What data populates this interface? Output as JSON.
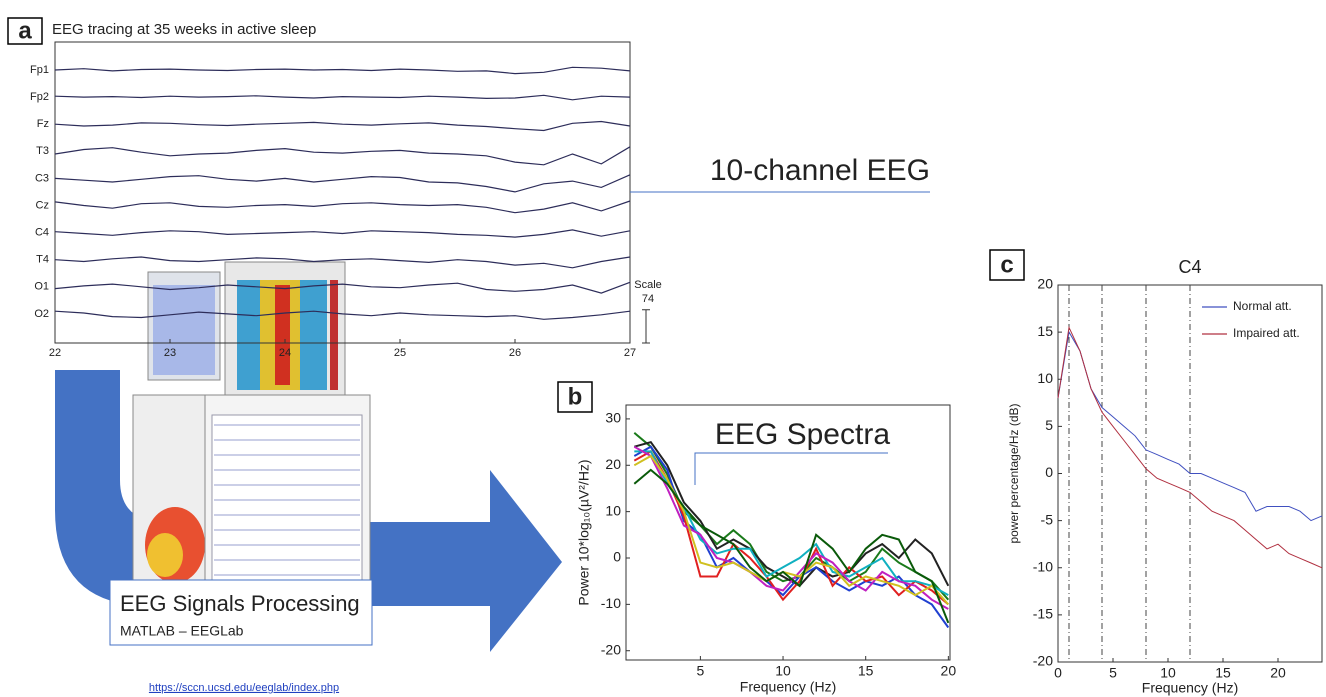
{
  "panel_labels": [
    "a",
    "b",
    "c"
  ],
  "processing": {
    "title": "EEG Signals Processing",
    "subtitle": "MATLAB – EEGLab",
    "link": "https://sccn.ucsd.edu/eeglab/index.php"
  },
  "chart_data": [
    {
      "type": "eeg",
      "title": "EEG tracing at 35 weeks in active sleep",
      "annotation": "10-channel EEG",
      "color": "#2d2d5a",
      "x": [
        22,
        22.25,
        22.5,
        22.75,
        23,
        23.25,
        23.5,
        23.75,
        24,
        24.25,
        24.5,
        24.75,
        25,
        25.25,
        25.5,
        25.75,
        26,
        26.25,
        26.5,
        26.75,
        27
      ],
      "xlim": [
        22,
        27
      ],
      "xticks": [
        22,
        23,
        24,
        25,
        26,
        27
      ],
      "scale_label": "Scale",
      "scale_value": 74,
      "series": [
        {
          "name": "Fp1",
          "values": [
            0,
            3,
            -2,
            1,
            2,
            0,
            -1,
            1,
            2,
            0,
            1,
            -1,
            2,
            0,
            -3,
            -2,
            -8,
            -5,
            6,
            4,
            -2
          ]
        },
        {
          "name": "Fp2",
          "values": [
            2,
            0,
            1,
            -1,
            2,
            0,
            1,
            3,
            0,
            -2,
            1,
            0,
            -1,
            2,
            0,
            -3,
            -2,
            4,
            -6,
            2,
            0
          ]
        },
        {
          "name": "Fz",
          "values": [
            0,
            -4,
            -2,
            3,
            2,
            -1,
            -3,
            0,
            2,
            4,
            0,
            -2,
            1,
            3,
            -2,
            -5,
            -10,
            -14,
            2,
            6,
            -4
          ]
        },
        {
          "name": "T3",
          "values": [
            -6,
            4,
            8,
            -2,
            -10,
            -6,
            -4,
            2,
            6,
            -2,
            -4,
            0,
            2,
            -4,
            -6,
            -10,
            -24,
            -30,
            -6,
            -28,
            10
          ]
        },
        {
          "name": "C3",
          "values": [
            0,
            -4,
            -8,
            -2,
            4,
            6,
            -2,
            -6,
            0,
            -8,
            -2,
            4,
            2,
            -8,
            -10,
            -18,
            -30,
            -12,
            -6,
            -20,
            8
          ]
        },
        {
          "name": "Cz",
          "values": [
            8,
            0,
            -6,
            4,
            6,
            -2,
            -4,
            0,
            2,
            -2,
            4,
            6,
            2,
            0,
            2,
            -4,
            -16,
            -8,
            6,
            -12,
            10
          ]
        },
        {
          "name": "C4",
          "values": [
            2,
            -2,
            -6,
            0,
            4,
            2,
            -4,
            -2,
            0,
            2,
            -2,
            4,
            2,
            0,
            -4,
            -6,
            -10,
            -4,
            6,
            -8,
            4
          ]
        },
        {
          "name": "T4",
          "values": [
            0,
            -4,
            2,
            6,
            -2,
            -4,
            0,
            4,
            2,
            -4,
            0,
            2,
            -2,
            -6,
            0,
            -4,
            -12,
            -8,
            -18,
            -4,
            6
          ]
        },
        {
          "name": "O1",
          "values": [
            -4,
            2,
            6,
            0,
            -6,
            -2,
            4,
            0,
            -4,
            2,
            6,
            0,
            -2,
            4,
            8,
            -6,
            -10,
            -6,
            4,
            -14,
            10
          ]
        },
        {
          "name": "O2",
          "values": [
            6,
            2,
            -6,
            -8,
            -2,
            4,
            0,
            -4,
            2,
            6,
            0,
            -4,
            2,
            -2,
            -4,
            -6,
            -4,
            -12,
            -8,
            -2,
            6
          ]
        }
      ]
    },
    {
      "type": "line",
      "annotation": "EEG Spectra",
      "xlabel": "Frequency (Hz)",
      "ylabel": "Power 10*log₁₀(µV²/Hz)",
      "x": [
        1,
        2,
        3,
        4,
        5,
        6,
        7,
        8,
        9,
        10,
        11,
        12,
        13,
        14,
        15,
        16,
        17,
        18,
        19,
        20
      ],
      "xlim": [
        0.5,
        20.1
      ],
      "ylim": [
        -22,
        33
      ],
      "xticks": [
        5,
        10,
        15,
        20
      ],
      "yticks": [
        -20,
        -10,
        0,
        10,
        20,
        30
      ],
      "series": [
        {
          "color": "#1a7a1a",
          "values": [
            27,
            24,
            18,
            10,
            7,
            3,
            6,
            3,
            -3,
            -5,
            -4,
            0,
            -2,
            -5,
            -3,
            2,
            -1,
            -3,
            -5,
            -9
          ]
        },
        {
          "color": "#222222",
          "values": [
            24,
            25,
            20,
            12,
            8,
            2,
            4,
            2,
            -2,
            -4,
            -6,
            -2,
            -4,
            -3,
            1,
            3,
            0,
            4,
            1,
            -6
          ]
        },
        {
          "color": "#2040d0",
          "values": [
            22,
            24,
            19,
            8,
            5,
            -2,
            0,
            -3,
            -5,
            -8,
            -4,
            -2,
            -5,
            -7,
            -5,
            -6,
            -4,
            -8,
            -10,
            -15
          ]
        },
        {
          "color": "#e02020",
          "values": [
            21,
            23,
            17,
            9,
            -4,
            -4,
            3,
            0,
            -4,
            -9,
            -5,
            2,
            -6,
            -2,
            -5,
            -4,
            -8,
            -5,
            -7,
            -10
          ]
        },
        {
          "color": "#10b0c0",
          "values": [
            23,
            23,
            16,
            11,
            4,
            1,
            2,
            2,
            -4,
            -2,
            0,
            3,
            -3,
            -4,
            -2,
            0,
            -5,
            -5,
            -6,
            -8
          ]
        },
        {
          "color": "#c020c0",
          "values": [
            24,
            22,
            15,
            7,
            5,
            0,
            -1,
            -3,
            -6,
            -7,
            -3,
            1,
            -1,
            -5,
            -7,
            -3,
            -5,
            -6,
            -9,
            -11
          ]
        },
        {
          "color": "#d0c020",
          "values": [
            20,
            22,
            17,
            10,
            -1,
            -2,
            -1,
            -3,
            -5,
            -3,
            -4,
            -1,
            -2,
            -6,
            -4,
            -5,
            -6,
            -8,
            -6,
            -10
          ]
        },
        {
          "color": "#0a5a0a",
          "values": [
            16,
            19,
            16,
            11,
            7,
            5,
            3,
            -2,
            -5,
            -3,
            -6,
            5,
            2,
            -3,
            2,
            5,
            4,
            -3,
            -5,
            -14
          ]
        }
      ]
    },
    {
      "type": "line",
      "title": "C4",
      "xlabel": "Frequency (Hz)",
      "ylabel": "power percentage/Hz (dB)",
      "legend": "upper right",
      "x": [
        0,
        1,
        2,
        3,
        4,
        5,
        6,
        7,
        8,
        9,
        10,
        11,
        12,
        13,
        14,
        15,
        16,
        17,
        18,
        19,
        20,
        21,
        22,
        23,
        24
      ],
      "xlim": [
        0,
        24
      ],
      "ylim": [
        -20,
        20
      ],
      "xticks": [
        0,
        5,
        10,
        15,
        20
      ],
      "yticks": [
        -20,
        -15,
        -10,
        -5,
        0,
        5,
        10,
        15,
        20
      ],
      "vlines": [
        1,
        4,
        8,
        12
      ],
      "series": [
        {
          "name": "Normal att.",
          "color": "#4050c0",
          "values": [
            8,
            15,
            13,
            9,
            7,
            6,
            5,
            4,
            2.5,
            2,
            1.5,
            1,
            0,
            0,
            -0.5,
            -1,
            -1.5,
            -2,
            -4,
            -3.5,
            -3.5,
            -3.5,
            -4,
            -5,
            -4.5
          ]
        },
        {
          "name": "Impaired att.",
          "color": "#b03040",
          "values": [
            8,
            15.5,
            13,
            9,
            6.5,
            5,
            3.5,
            2,
            0.5,
            -0.5,
            -1,
            -1.5,
            -2,
            -3,
            -4,
            -4.5,
            -5,
            -6,
            -7,
            -8,
            -7.5,
            -8.5,
            -9,
            -9.5,
            -10
          ]
        }
      ]
    }
  ]
}
